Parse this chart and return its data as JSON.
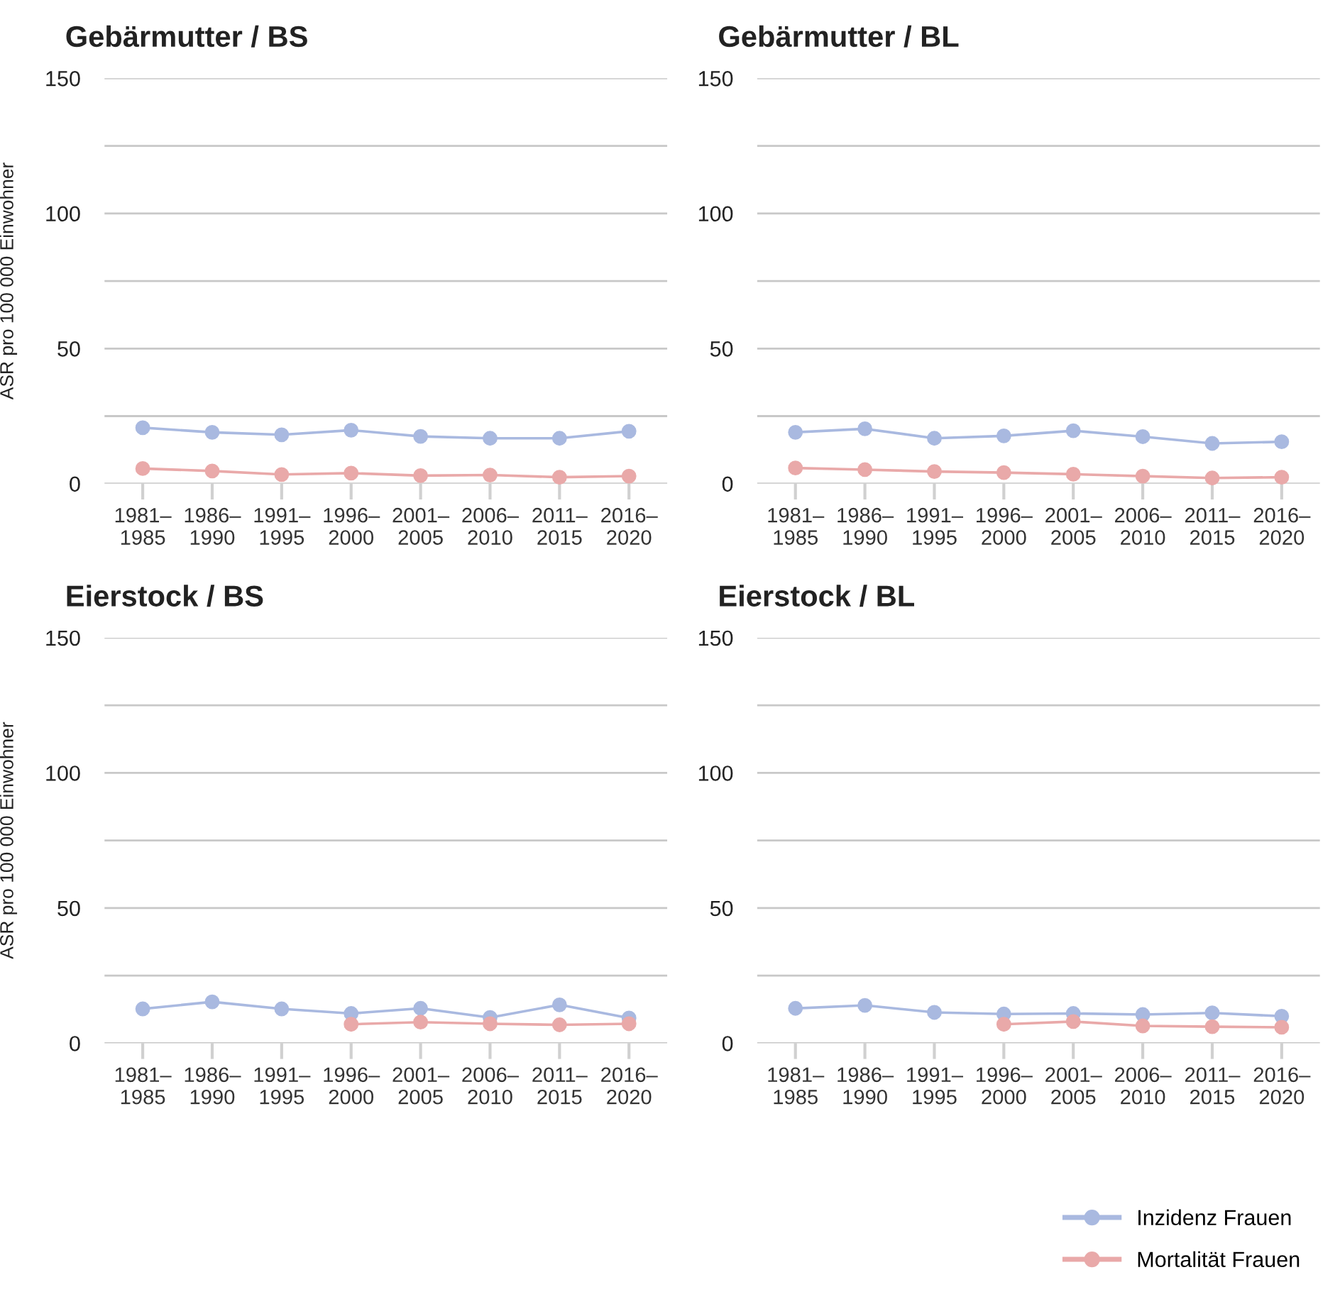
{
  "chart_data": [
    {
      "type": "line",
      "title": "Gebärmutter / BS",
      "ylabel": "ASR pro 100 000 Einwohner",
      "categories": [
        "1981–\n1985",
        "1986–\n1990",
        "1991–\n1995",
        "1996–\n2000",
        "2001–\n2005",
        "2006–\n2010",
        "2011–\n2015",
        "2016–\n2020"
      ],
      "ylim": [
        0,
        150
      ],
      "yticks": [
        0,
        {
          "value": 25,
          "label": null
        },
        50,
        {
          "value": 75,
          "label": null
        },
        100,
        {
          "value": 125,
          "label": null
        },
        150
      ],
      "grid": "y",
      "marker": "circle",
      "legend": "bottom right",
      "series": [
        {
          "name": "Inzidenz Frauen",
          "color": "#a9b9e0",
          "values": [
            20.7,
            19.0,
            18.1,
            19.8,
            17.5,
            16.8,
            16.8,
            19.4
          ]
        },
        {
          "name": "Mortalität Frauen",
          "color": "#e9a9a9",
          "values": [
            5.6,
            4.7,
            3.4,
            3.9,
            3.0,
            3.2,
            2.4,
            2.8
          ]
        }
      ]
    },
    {
      "type": "line",
      "title": "Gebärmutter / BL",
      "categories": [
        "1981–\n1985",
        "1986–\n1990",
        "1991–\n1995",
        "1996–\n2000",
        "2001–\n2005",
        "2006–\n2010",
        "2011–\n2015",
        "2016–\n2020"
      ],
      "ylim": [
        0,
        150
      ],
      "yticks": [
        0,
        {
          "value": 25,
          "label": null
        },
        50,
        {
          "value": 75,
          "label": null
        },
        100,
        {
          "value": 125,
          "label": null
        },
        150
      ],
      "grid": "y",
      "marker": "circle",
      "series": [
        {
          "color": "#a9b9e0",
          "values": [
            19.0,
            20.3,
            16.8,
            17.7,
            19.6,
            17.4,
            14.9,
            15.5
          ]
        },
        {
          "color": "#e9a9a9",
          "values": [
            5.8,
            5.2,
            4.5,
            4.1,
            3.5,
            2.8,
            2.1,
            2.4
          ]
        }
      ]
    },
    {
      "type": "line",
      "title": "Eierstock / BS",
      "ylabel": "ASR pro 100 000 Einwohner",
      "categories": [
        "1981–\n1985",
        "1986–\n1990",
        "1991–\n1995",
        "1996–\n2000",
        "2001–\n2005",
        "2006–\n2010",
        "2011–\n2015",
        "2016–\n2020"
      ],
      "ylim": [
        0,
        150
      ],
      "yticks": [
        0,
        {
          "value": 25,
          "label": null
        },
        50,
        {
          "value": 75,
          "label": null
        },
        100,
        {
          "value": 125,
          "label": null
        },
        150
      ],
      "grid": "y",
      "marker": "circle",
      "series": [
        {
          "color": "#a9b9e0",
          "values": [
            12.7,
            15.3,
            12.7,
            11.0,
            12.9,
            9.5,
            14.2,
            9.3
          ]
        },
        {
          "color": "#e9a9a9",
          "values": [
            null,
            null,
            null,
            7.0,
            7.8,
            7.2,
            6.8,
            7.2
          ]
        }
      ]
    },
    {
      "type": "line",
      "title": "Eierstock / BL",
      "categories": [
        "1981–\n1985",
        "1986–\n1990",
        "1991–\n1995",
        "1996–\n2000",
        "2001–\n2005",
        "2006–\n2010",
        "2011–\n2015",
        "2016–\n2020"
      ],
      "ylim": [
        0,
        150
      ],
      "yticks": [
        0,
        {
          "value": 25,
          "label": null
        },
        50,
        {
          "value": 75,
          "label": null
        },
        100,
        {
          "value": 125,
          "label": null
        },
        150
      ],
      "grid": "y",
      "marker": "circle",
      "series": [
        {
          "color": "#a9b9e0",
          "values": [
            12.9,
            14.0,
            11.4,
            10.8,
            11.0,
            10.6,
            11.2,
            10.0
          ]
        },
        {
          "color": "#e9a9a9",
          "values": [
            null,
            null,
            null,
            7.0,
            8.0,
            6.4,
            6.1,
            5.9
          ]
        }
      ]
    }
  ]
}
